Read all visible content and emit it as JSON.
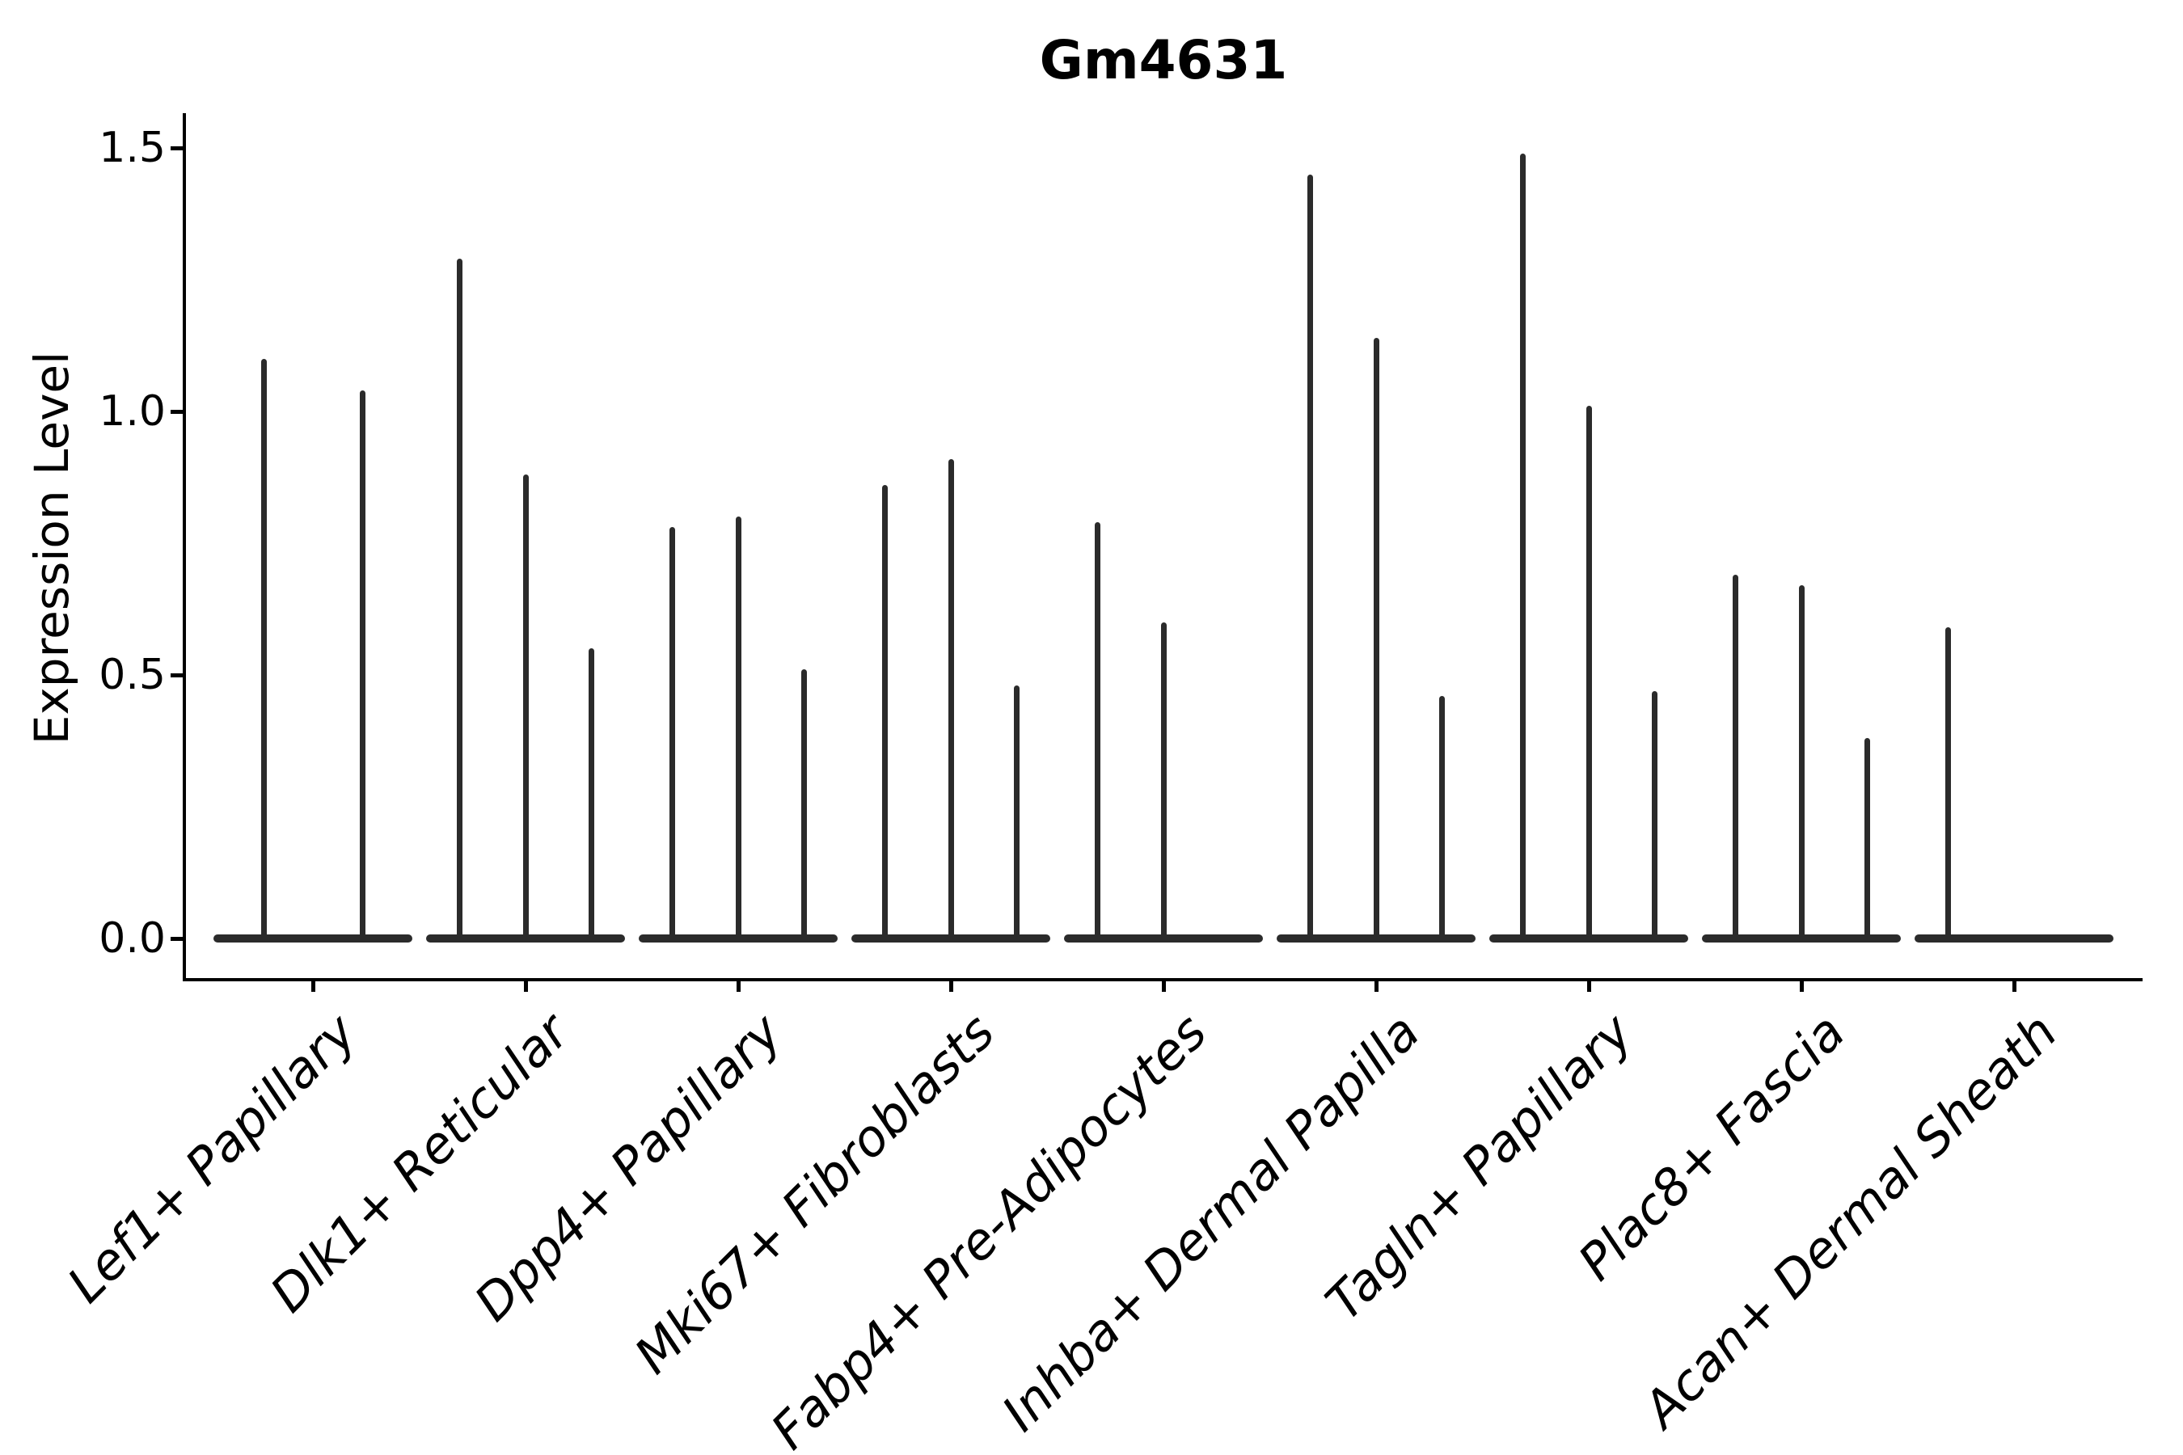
{
  "chart_data": {
    "type": "violin",
    "title": "Gm4631",
    "ylabel": "Expression Level",
    "xlabel": "",
    "ylim": [
      -0.08,
      1.57
    ],
    "grid": false,
    "legend": "none",
    "yticks": [
      {
        "label": "0.0",
        "value": 0.0
      },
      {
        "label": "0.5",
        "value": 0.5
      },
      {
        "label": "1.0",
        "value": 1.0
      },
      {
        "label": "1.5",
        "value": 1.5
      }
    ],
    "categories": [
      "Lef1+ Papillary",
      "Dlk1+ Reticular",
      "Dpp4+ Papillary",
      "Mki67+ Fibroblasts",
      "Fabp4+ Pre-Adipocytes",
      "Inhba+ Dermal Papilla",
      "Tagln+ Papillary",
      "Plac8+ Fascia",
      "Acan+ Dermal Sheath"
    ],
    "groups": [
      {
        "category": "Lef1+ Papillary",
        "violin_max_values": [
          1.1,
          1.04
        ]
      },
      {
        "category": "Dlk1+ Reticular",
        "violin_max_values": [
          1.29,
          0.88,
          0.55
        ]
      },
      {
        "category": "Dpp4+ Papillary",
        "violin_max_values": [
          0.78,
          0.8,
          0.51
        ]
      },
      {
        "category": "Mki67+ Fibroblasts",
        "violin_max_values": [
          0.86,
          0.91,
          0.48
        ]
      },
      {
        "category": "Fabp4+ Pre-Adipocytes",
        "violin_max_values": [
          0.79,
          0.6,
          0.0
        ]
      },
      {
        "category": "Inhba+ Dermal Papilla",
        "violin_max_values": [
          1.45,
          1.14,
          0.46
        ]
      },
      {
        "category": "Tagln+ Papillary",
        "violin_max_values": [
          1.49,
          1.01,
          0.47
        ]
      },
      {
        "category": "Plac8+ Fascia",
        "violin_max_values": [
          0.69,
          0.67,
          0.38
        ]
      },
      {
        "category": "Acan+ Dermal Sheath",
        "violin_max_values": [
          0.59,
          0.0,
          0.0
        ]
      }
    ],
    "colors": {
      "violin": "#2b2b2b",
      "axis": "#000000",
      "text": "#000000",
      "background": "#ffffff"
    }
  }
}
